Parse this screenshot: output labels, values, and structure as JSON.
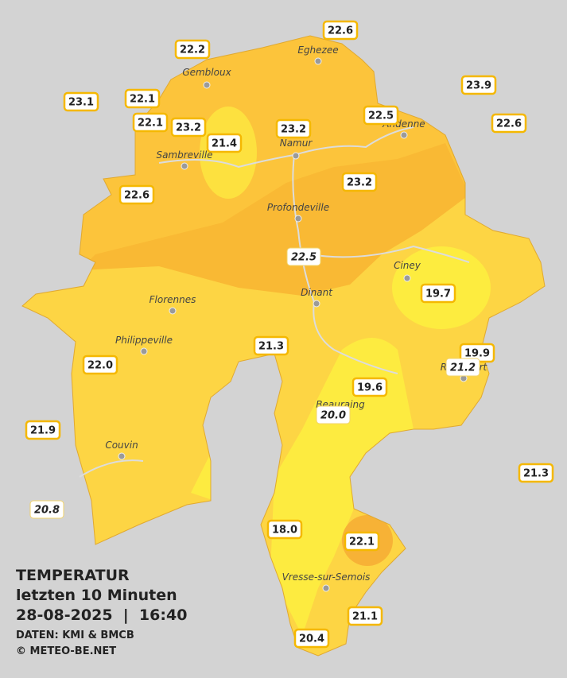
{
  "map": {
    "legend": {
      "title": "TEMPERATUR",
      "period": "letzten 10 Minuten",
      "timestamp": "28-08-2025  |  16:40",
      "source": "DATEN: KMI & BMCB",
      "copyright": "© METEO-BE.NET"
    },
    "cities": [
      "Gembloux",
      "Eghezee",
      "Andenne",
      "Namur",
      "Sambreville",
      "Profondeville",
      "Ciney",
      "Dinant",
      "Florennes",
      "Philippeville",
      "Couvin",
      "Beauraing",
      "Rochefort",
      "Vresse-sur-Semois"
    ],
    "stations": [
      "22.6",
      "22.2",
      "23.9",
      "23.1",
      "22.1",
      "22.5",
      "22.6",
      "22.1",
      "23.2",
      "23.2",
      "21.4",
      "23.2",
      "22.6",
      "22.5",
      "19.7",
      "21.3",
      "19.9",
      "22.0",
      "21.2",
      "19.6",
      "20.0",
      "21.9",
      "21.3",
      "20.8",
      "18.0",
      "22.1",
      "21.1",
      "20.4"
    ]
  }
}
